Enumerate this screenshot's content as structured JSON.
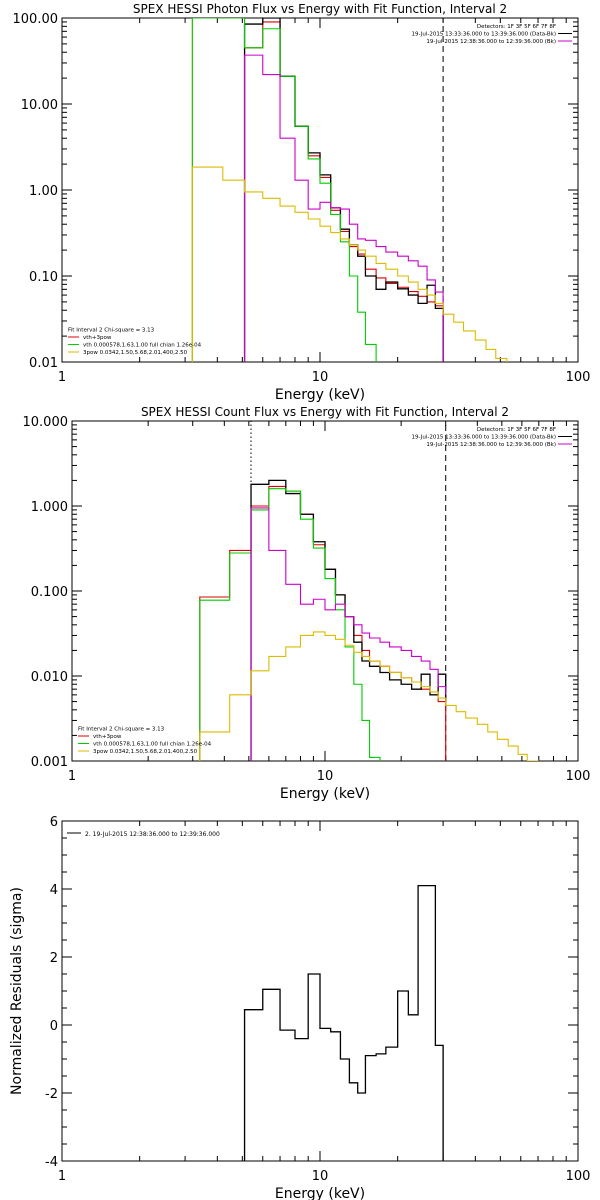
{
  "chart_data": [
    {
      "type": "line",
      "title": "SPEX HESSI Photon Flux vs Energy with Fit Function, Interval 2",
      "xlabel": "Energy (keV)",
      "ylabel": "",
      "x_scale": "log",
      "y_scale": "log",
      "xlim": [
        1,
        100
      ],
      "ylim": [
        0.01,
        100
      ],
      "x_ticks": [
        1,
        10,
        100
      ],
      "x_tick_labels": [
        "1",
        "10",
        "100"
      ],
      "y_ticks": [
        0.01,
        0.1,
        1,
        10,
        100
      ],
      "y_tick_labels": [
        "0.01",
        "0.10",
        "1.00",
        "10.00",
        "100.00"
      ],
      "legend_top": [
        {
          "text": "Detectors: 1F 3F 5F 6F 7F 8F",
          "color": "#000000",
          "swatch": false
        },
        {
          "text": "19-Jul-2015 13:33:36.000 to 13:39:36.000 (Data-Bk)",
          "color": "#000000",
          "swatch": true
        },
        {
          "text": "19-Jul-2015 12:38:36.000 to 12:39:36.000 (Bk)",
          "color": "#cc00cc",
          "swatch": true
        }
      ],
      "legend_bottom": [
        {
          "text": "Fit Interval 2   Chi-square = 3.13",
          "color": "#000000",
          "swatch": false
        },
        {
          "text": "vth+3pow",
          "color": "#dd0000",
          "swatch": true
        },
        {
          "text": "vth 0.000578,1.63,1.00   full chian 1.26e-04",
          "color": "#00cc00",
          "swatch": true
        },
        {
          "text": "3pow 0.0342,1.50,5.68,2.01,400,2.50",
          "color": "#ddbb00",
          "swatch": true
        }
      ],
      "vlines": [
        {
          "x": 3.2,
          "color": "#ddbb00",
          "style": "solid",
          "y0": 0.01,
          "y1": 100
        },
        {
          "x": 5.1,
          "color": "#cc00cc",
          "style": "dotted",
          "y0": 0.01,
          "y1": 100
        },
        {
          "x": 30,
          "color": "#000000",
          "style": "dashed",
          "y0": 0.01,
          "y1": 100
        }
      ],
      "series": [
        {
          "name": "vth+3pow",
          "color": "#dd0000",
          "edges": [
            5.1,
            6.0,
            7.0,
            8.0,
            9.0,
            10.0,
            11.0,
            12.0,
            13.0,
            14.0,
            15.0,
            16.5,
            18.0,
            20.0,
            22.0,
            24.0,
            26.0,
            28.0,
            30.0
          ],
          "values": [
            45,
            90,
            21,
            5.5,
            2.5,
            1.4,
            0.58,
            0.33,
            0.22,
            0.18,
            0.12,
            0.095,
            0.082,
            0.074,
            0.066,
            0.058,
            0.05,
            0.045
          ]
        },
        {
          "name": "Data-Bk",
          "color": "#000000",
          "edges": [
            5.1,
            6.0,
            7.0,
            8.0,
            9.0,
            10.0,
            11.0,
            12.0,
            13.0,
            14.0,
            15.0,
            16.5,
            18.0,
            20.0,
            22.0,
            24.0,
            26.0,
            28.0,
            30.0
          ],
          "values": [
            85,
            100,
            21,
            5.5,
            2.7,
            1.5,
            0.62,
            0.35,
            0.23,
            0.17,
            0.1,
            0.07,
            0.085,
            0.071,
            0.06,
            0.048,
            0.078,
            0.042
          ]
        },
        {
          "name": "vth",
          "color": "#00cc00",
          "edges": [
            3.2,
            4.2,
            5.1,
            6.0,
            7.0,
            8.0,
            9.0,
            10.0,
            11.0,
            12.0,
            13.0,
            14.0,
            15.0,
            16.5
          ],
          "values": [
            100,
            100,
            45,
            75,
            21,
            5.5,
            2.3,
            1.2,
            0.52,
            0.25,
            0.1,
            0.038,
            0.016
          ]
        },
        {
          "name": "Bk",
          "color": "#cc00cc",
          "edges": [
            5.1,
            6.0,
            7.0,
            8.0,
            9.0,
            10.0,
            11.0,
            12.0,
            13.0,
            14.0,
            15.0,
            16.5,
            18.0,
            20.0,
            22.0,
            24.0,
            26.0,
            28.0,
            30.0
          ],
          "values": [
            37,
            22,
            4.0,
            1.3,
            0.6,
            0.72,
            0.62,
            0.6,
            0.4,
            0.27,
            0.26,
            0.22,
            0.19,
            0.17,
            0.15,
            0.13,
            0.09,
            0.065
          ]
        },
        {
          "name": "3pow",
          "color": "#ddbb00",
          "edges": [
            3.2,
            4.2,
            5.1,
            6.0,
            7.0,
            8.0,
            9.0,
            10.0,
            11.0,
            12.0,
            13.0,
            14.0,
            15.0,
            16.5,
            18.0,
            20.0,
            22.0,
            24.0,
            26.0,
            28.0,
            30.0,
            33.0,
            36.0,
            40.0,
            44.0,
            48.0,
            53.0
          ],
          "values": [
            1.85,
            1.3,
            0.95,
            0.8,
            0.65,
            0.55,
            0.46,
            0.38,
            0.32,
            0.27,
            0.23,
            0.2,
            0.17,
            0.14,
            0.12,
            0.1,
            0.085,
            0.07,
            0.06,
            0.048,
            0.036,
            0.029,
            0.023,
            0.018,
            0.014,
            0.011
          ]
        }
      ]
    },
    {
      "type": "line",
      "title": "SPEX HESSI Count Flux vs Energy with Fit Function, Interval 2",
      "xlabel": "Energy (keV)",
      "ylabel": "",
      "x_scale": "log",
      "y_scale": "log",
      "xlim": [
        1,
        100
      ],
      "ylim": [
        0.001,
        10
      ],
      "x_ticks": [
        1,
        10,
        100
      ],
      "x_tick_labels": [
        "1",
        "10",
        "100"
      ],
      "y_ticks": [
        0.001,
        0.01,
        0.1,
        1,
        10
      ],
      "y_tick_labels": [
        "0.001",
        "0.010",
        "0.100",
        "1.000",
        "10.000"
      ],
      "legend_top": [
        {
          "text": "Detectors: 1F 3F 5F 6F 7F 8F",
          "color": "#000000",
          "swatch": false
        },
        {
          "text": "19-Jul-2015 13:33:36.000 to 13:39:36.000 (Data-Bk)",
          "color": "#000000",
          "swatch": true
        },
        {
          "text": "19-Jul-2015 12:38:36.000 to 12:39:36.000 (Bk)",
          "color": "#cc00cc",
          "swatch": true
        }
      ],
      "legend_bottom": [
        {
          "text": "Fit Interval 2   Chi-square = 3.13",
          "color": "#000000",
          "swatch": false
        },
        {
          "text": "vth+3pow",
          "color": "#dd0000",
          "swatch": true
        },
        {
          "text": "vth 0.000578,1.63,1.00   full chian 1.26e-04",
          "color": "#00cc00",
          "swatch": true
        },
        {
          "text": "3pow 0.0342,1.50,5.68,2.01,400,2.50",
          "color": "#ddbb00",
          "swatch": true
        }
      ],
      "vlines": [
        {
          "x": 5.1,
          "color": "#000000",
          "style": "dotted",
          "y0": 1.0,
          "y1": 10
        },
        {
          "x": 5.1,
          "color": "#cc00cc",
          "style": "solid",
          "y0": 0.001,
          "y1": 1.0
        },
        {
          "x": 30,
          "color": "#000000",
          "style": "dashed",
          "y0": 0.001,
          "y1": 10
        }
      ],
      "series": [
        {
          "name": "vth+3pow",
          "color": "#dd0000",
          "edges": [
            3.2,
            4.2,
            5.1,
            6.0,
            7.0,
            8.0,
            9.0,
            10.0,
            11.0,
            12.0,
            13.0,
            14.0,
            15.0,
            16.5,
            18.0,
            20.0,
            22.0,
            24.0,
            26.0,
            28.0,
            30.0
          ],
          "values": [
            0.085,
            0.3,
            1.0,
            1.7,
            1.5,
            0.8,
            0.35,
            0.18,
            0.09,
            0.05,
            0.03,
            0.02,
            0.015,
            0.013,
            0.011,
            0.0095,
            0.0085,
            0.007,
            0.006,
            0.005
          ]
        },
        {
          "name": "Data-Bk",
          "color": "#000000",
          "edges": [
            5.1,
            6.0,
            7.0,
            8.0,
            9.0,
            10.0,
            11.0,
            12.0,
            13.0,
            14.0,
            15.0,
            16.5,
            18.0,
            20.0,
            22.0,
            24.0,
            26.0,
            28.0,
            30.0
          ],
          "values": [
            1.8,
            2.0,
            1.4,
            0.8,
            0.38,
            0.18,
            0.09,
            0.05,
            0.025,
            0.015,
            0.013,
            0.011,
            0.009,
            0.008,
            0.007,
            0.0105,
            0.006,
            0.0105,
            0.005
          ]
        },
        {
          "name": "vth",
          "color": "#00cc00",
          "edges": [
            3.2,
            4.2,
            5.1,
            6.0,
            7.0,
            8.0,
            9.0,
            10.0,
            11.0,
            12.0,
            13.0,
            14.0,
            15.0,
            16.5
          ],
          "values": [
            0.078,
            0.28,
            0.9,
            1.6,
            1.5,
            0.7,
            0.32,
            0.14,
            0.06,
            0.022,
            0.008,
            0.003,
            0.0011
          ]
        },
        {
          "name": "Bk",
          "color": "#cc00cc",
          "edges": [
            5.1,
            6.0,
            7.0,
            8.0,
            9.0,
            10.0,
            11.0,
            12.0,
            13.0,
            14.0,
            15.0,
            16.5,
            18.0,
            20.0,
            22.0,
            24.0,
            26.0,
            28.0,
            30.0
          ],
          "values": [
            0.95,
            0.3,
            0.12,
            0.07,
            0.08,
            0.06,
            0.07,
            0.05,
            0.04,
            0.032,
            0.028,
            0.025,
            0.022,
            0.02,
            0.017,
            0.015,
            0.012,
            0.0075,
            0.006
          ]
        },
        {
          "name": "3pow",
          "color": "#ddbb00",
          "edges": [
            3.2,
            4.2,
            5.1,
            6.0,
            7.0,
            8.0,
            9.0,
            10.0,
            11.0,
            12.0,
            13.0,
            14.0,
            15.0,
            16.5,
            18.0,
            20.0,
            22.0,
            24.0,
            26.0,
            28.0,
            30.0,
            33.0,
            36.0,
            40.0,
            44.0,
            48.0,
            53.0,
            58.0,
            63.0,
            70.0
          ],
          "values": [
            0.0022,
            0.006,
            0.0115,
            0.017,
            0.022,
            0.03,
            0.033,
            0.03,
            0.027,
            0.023,
            0.019,
            0.017,
            0.015,
            0.013,
            0.011,
            0.0095,
            0.0085,
            0.0075,
            0.0065,
            0.0055,
            0.0045,
            0.0038,
            0.0032,
            0.0027,
            0.0022,
            0.0018,
            0.0015,
            0.0012,
            0.001
          ]
        }
      ]
    },
    {
      "type": "line",
      "title": "",
      "xlabel": "Energy (keV)",
      "ylabel": "Normalized Residuals (sigma)",
      "x_scale": "log",
      "y_scale": "linear",
      "xlim": [
        1,
        100
      ],
      "ylim": [
        -4,
        6
      ],
      "x_ticks": [
        1,
        10,
        100
      ],
      "x_tick_labels": [
        "1",
        "10",
        "100"
      ],
      "y_ticks": [
        -4,
        -2,
        0,
        2,
        4,
        6
      ],
      "y_tick_labels": [
        "-4",
        "-2",
        "0",
        "2",
        "4",
        "6"
      ],
      "legend_top": [
        {
          "text": "2. 19-Jul-2015 12:38:36.000 to 12:39:36.000",
          "color": "#000000",
          "swatch": true
        }
      ],
      "legend_bottom": [],
      "vlines": [
        {
          "x": 5.1,
          "color": "#000000",
          "style": "solid",
          "y0": -4,
          "y1": 0.45
        },
        {
          "x": 30,
          "color": "#000000",
          "style": "solid",
          "y0": -4,
          "y1": -0.6
        }
      ],
      "series": [
        {
          "name": "",
          "color": "#000000",
          "edges": [
            5.1,
            6.0,
            7.0,
            8.0,
            9.0,
            10.0,
            11.0,
            12.0,
            13.0,
            14.0,
            15.0,
            16.5,
            18.0,
            20.0,
            22.0,
            24.0,
            26.0,
            28.0,
            30.0
          ],
          "values": [
            0.45,
            1.05,
            -0.15,
            -0.4,
            1.5,
            -0.1,
            -0.2,
            -1.0,
            -1.7,
            -2.0,
            -0.9,
            -0.85,
            -0.65,
            1.0,
            0.3,
            4.1,
            4.1,
            -0.6
          ]
        }
      ]
    }
  ]
}
